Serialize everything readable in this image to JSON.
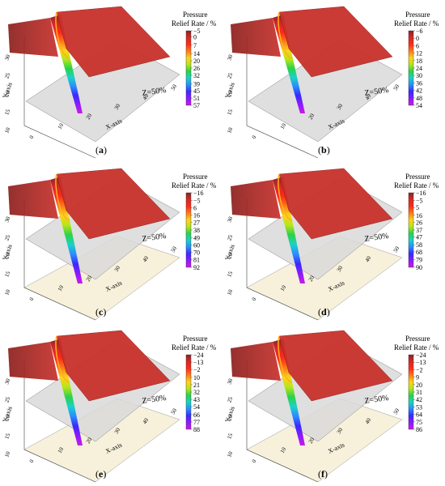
{
  "legend_title_line1": "Pressure",
  "legend_title_line2": "Relief Rate / %",
  "colorbar_colors": [
    "#8b2323",
    "#d42a25",
    "#ff2a1a",
    "#ff7a1a",
    "#ffd21a",
    "#b4e61a",
    "#2ad24a",
    "#1ad2c8",
    "#2a8cff",
    "#3a2aff",
    "#8c1aff",
    "#c81ae6"
  ],
  "surface_color": "#c8302b",
  "plane_color": "#d9d9d9",
  "base_color": "#f7f1dc",
  "chart_data": [
    {
      "type": "heatmap",
      "panel_label": "a",
      "plane_label": "Z=50%",
      "xlabel": "X-axis",
      "ylabel": "Y-axis",
      "x_ticks": [
        "0",
        "10",
        "20",
        "30",
        "40",
        "50"
      ],
      "y_ticks": [
        "10",
        "15",
        "20",
        "25",
        "30"
      ],
      "colorbar_ticks": [
        "-5",
        "0",
        "7",
        "14",
        "20",
        "26",
        "32",
        "39",
        "45",
        "51",
        "57"
      ],
      "surface_min": -5,
      "surface_max": 57
    },
    {
      "type": "heatmap",
      "panel_label": "b",
      "plane_label": "Z=50%",
      "xlabel": "X-axis",
      "ylabel": "Y-axis",
      "x_ticks": [
        "0",
        "10",
        "20",
        "30",
        "40",
        "50"
      ],
      "y_ticks": [
        "10",
        "15",
        "20",
        "25",
        "30"
      ],
      "colorbar_ticks": [
        "-6",
        "0",
        "6",
        "12",
        "18",
        "24",
        "30",
        "36",
        "42",
        "48",
        "54"
      ],
      "surface_min": -6,
      "surface_max": 54
    },
    {
      "type": "heatmap",
      "panel_label": "c",
      "plane_label": "Z=50%",
      "xlabel": "X-axis",
      "ylabel": "Y-axis",
      "x_ticks": [
        "0",
        "10",
        "20",
        "30",
        "40",
        "50"
      ],
      "y_ticks": [
        "10",
        "15",
        "20",
        "25",
        "30"
      ],
      "colorbar_ticks": [
        "-16",
        "-5",
        "6",
        "16",
        "27",
        "38",
        "49",
        "60",
        "70",
        "81",
        "92"
      ],
      "surface_min": -16,
      "surface_max": 92
    },
    {
      "type": "heatmap",
      "panel_label": "d",
      "plane_label": "Z=50%",
      "xlabel": "X-axis",
      "ylabel": "Y-axis",
      "x_ticks": [
        "0",
        "10",
        "20",
        "30",
        "40",
        "50"
      ],
      "y_ticks": [
        "10",
        "15",
        "20",
        "25",
        "30"
      ],
      "colorbar_ticks": [
        "-16",
        "-5",
        "5",
        "16",
        "26",
        "37",
        "47",
        "58",
        "68",
        "79",
        "90"
      ],
      "surface_min": -16,
      "surface_max": 90
    },
    {
      "type": "heatmap",
      "panel_label": "e",
      "plane_label": "Z=50%",
      "xlabel": "X-axis",
      "ylabel": "Y-axis",
      "x_ticks": [
        "0",
        "10",
        "20",
        "30",
        "40",
        "50"
      ],
      "y_ticks": [
        "10",
        "15",
        "20",
        "25",
        "30"
      ],
      "colorbar_ticks": [
        "-24",
        "-13",
        "-2",
        "10",
        "21",
        "32",
        "43",
        "54",
        "66",
        "77",
        "88"
      ],
      "surface_min": -24,
      "surface_max": 88
    },
    {
      "type": "heatmap",
      "panel_label": "f",
      "plane_label": "Z=50%",
      "xlabel": "X-axis",
      "ylabel": "Y-axis",
      "x_ticks": [
        "0",
        "10",
        "20",
        "30",
        "40",
        "50"
      ],
      "y_ticks": [
        "10",
        "15",
        "20",
        "25",
        "30"
      ],
      "colorbar_ticks": [
        "-24",
        "-13",
        "-2",
        "9",
        "20",
        "31",
        "42",
        "53",
        "64",
        "75",
        "86"
      ],
      "surface_min": -24,
      "surface_max": 86
    }
  ]
}
